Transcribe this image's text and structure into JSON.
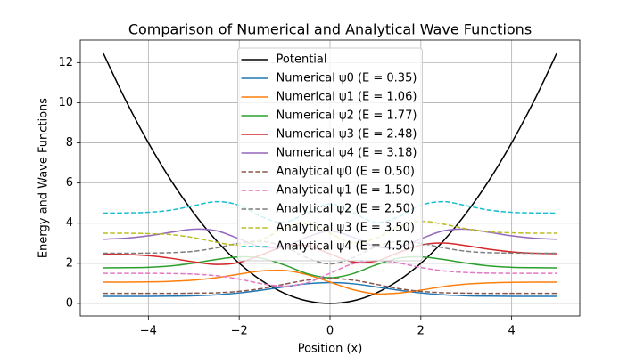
{
  "chart_data": {
    "type": "line",
    "title": "Comparison of Numerical and Analytical Wave Functions",
    "xlabel": "Position (x)",
    "ylabel": "Energy and Wave Functions",
    "xlim": [
      -5.5,
      5.5
    ],
    "ylim": [
      -0.625,
      13.125
    ],
    "xticks": [
      {
        "value": -4,
        "label": "−4"
      },
      {
        "value": -2,
        "label": "−2"
      },
      0,
      2,
      4
    ],
    "yticks": [
      0,
      2,
      4,
      6,
      8,
      10,
      12
    ],
    "grid": true,
    "legend": "upper center",
    "x": [
      -5,
      -4.5,
      -4,
      -3.5,
      -3,
      -2.5,
      -2,
      -1.5,
      -1,
      -0.5,
      0,
      0.5,
      1,
      1.5,
      2,
      2.5,
      3,
      3.5,
      4,
      4.5,
      5
    ],
    "series": [
      {
        "name": "Potential",
        "color": "#000000",
        "linestyle": "solid",
        "values": [
          12.5,
          10.125,
          8,
          6.125,
          4.5,
          3.125,
          2,
          1.125,
          0.5,
          0.125,
          0,
          0.125,
          0.5,
          1.125,
          2,
          3.125,
          4.5,
          6.125,
          8,
          10.125,
          12.5
        ]
      },
      {
        "name": "Numerical ψ0 (E = 0.35)",
        "color": "#1f77b4",
        "linestyle": "solid",
        "values": [
          0.35,
          0.35,
          0.35,
          0.36,
          0.38,
          0.43,
          0.52,
          0.66,
          0.83,
          0.98,
          1.04,
          0.98,
          0.83,
          0.66,
          0.52,
          0.43,
          0.38,
          0.36,
          0.35,
          0.35,
          0.35
        ]
      },
      {
        "name": "Numerical ψ1 (E = 1.06)",
        "color": "#ff7f0e",
        "linestyle": "solid",
        "values": [
          1.06,
          1.06,
          1.07,
          1.1,
          1.16,
          1.28,
          1.46,
          1.62,
          1.64,
          1.43,
          1.06,
          0.69,
          0.48,
          0.51,
          0.66,
          0.84,
          0.96,
          1.02,
          1.05,
          1.06,
          1.06
        ]
      },
      {
        "name": "Numerical ψ2 (E = 1.77)",
        "color": "#2ca02c",
        "linestyle": "solid",
        "values": [
          1.77,
          1.78,
          1.8,
          1.87,
          2.01,
          2.19,
          2.32,
          2.25,
          1.91,
          1.48,
          1.28,
          1.48,
          1.91,
          2.25,
          2.32,
          2.19,
          2.01,
          1.87,
          1.8,
          1.78,
          1.77
        ]
      },
      {
        "name": "Numerical ψ3 (E = 2.48)",
        "color": "#d62728",
        "linestyle": "solid",
        "values": [
          2.47,
          2.44,
          2.38,
          2.25,
          2.07,
          1.94,
          2.04,
          2.43,
          2.85,
          2.88,
          2.47,
          2.07,
          2.1,
          2.52,
          2.91,
          3.01,
          2.88,
          2.7,
          2.57,
          2.5,
          2.48
        ]
      },
      {
        "name": "Numerical ψ4 (E = 3.18)",
        "color": "#9467bd",
        "linestyle": "solid",
        "values": [
          3.2,
          3.25,
          3.37,
          3.55,
          3.7,
          3.62,
          3.22,
          2.8,
          2.84,
          3.31,
          3.6,
          3.31,
          2.84,
          2.8,
          3.22,
          3.62,
          3.7,
          3.55,
          3.37,
          3.25,
          3.2
        ]
      },
      {
        "name": "Analytical ψ0 (E = 0.50)",
        "color": "#8c564b",
        "linestyle": "dashed",
        "values": [
          0.5,
          0.5,
          0.5,
          0.5,
          0.51,
          0.53,
          0.6,
          0.74,
          0.96,
          1.16,
          1.25,
          1.16,
          0.96,
          0.74,
          0.6,
          0.53,
          0.51,
          0.5,
          0.5,
          0.5,
          0.5
        ]
      },
      {
        "name": "Analytical ψ1 (E = 1.50)",
        "color": "#e377c2",
        "linestyle": "dashed",
        "values": [
          1.5,
          1.5,
          1.5,
          1.49,
          1.46,
          1.38,
          1.21,
          0.98,
          0.86,
          1.03,
          1.5,
          1.97,
          2.14,
          2.02,
          1.79,
          1.62,
          1.54,
          1.51,
          1.5,
          1.5,
          1.5
        ]
      },
      {
        "name": "Analytical ψ2 (E = 2.50)",
        "color": "#7f7f7f",
        "linestyle": "dashed",
        "values": [
          2.5,
          2.5,
          2.51,
          2.53,
          2.6,
          2.77,
          3.0,
          3.1,
          2.82,
          2.27,
          1.97,
          2.27,
          2.82,
          3.1,
          3.0,
          2.77,
          2.6,
          2.53,
          2.51,
          2.5,
          2.5
        ]
      },
      {
        "name": "Analytical ψ3 (E = 3.50)",
        "color": "#bcbd22",
        "linestyle": "dashed",
        "values": [
          3.5,
          3.5,
          3.48,
          3.43,
          3.28,
          3.05,
          2.91,
          3.18,
          3.76,
          3.98,
          3.5,
          3.02,
          3.24,
          3.82,
          4.09,
          3.95,
          3.72,
          3.57,
          3.52,
          3.5,
          3.5
        ]
      },
      {
        "name": "Analytical ψ4 (E = 4.50)",
        "color": "#17becf",
        "linestyle": "dashed",
        "values": [
          4.5,
          4.51,
          4.54,
          4.65,
          4.87,
          5.07,
          4.89,
          4.31,
          4.04,
          4.53,
          4.96,
          4.53,
          4.04,
          4.31,
          4.89,
          5.07,
          4.87,
          4.65,
          4.54,
          4.51,
          4.5
        ]
      }
    ]
  }
}
